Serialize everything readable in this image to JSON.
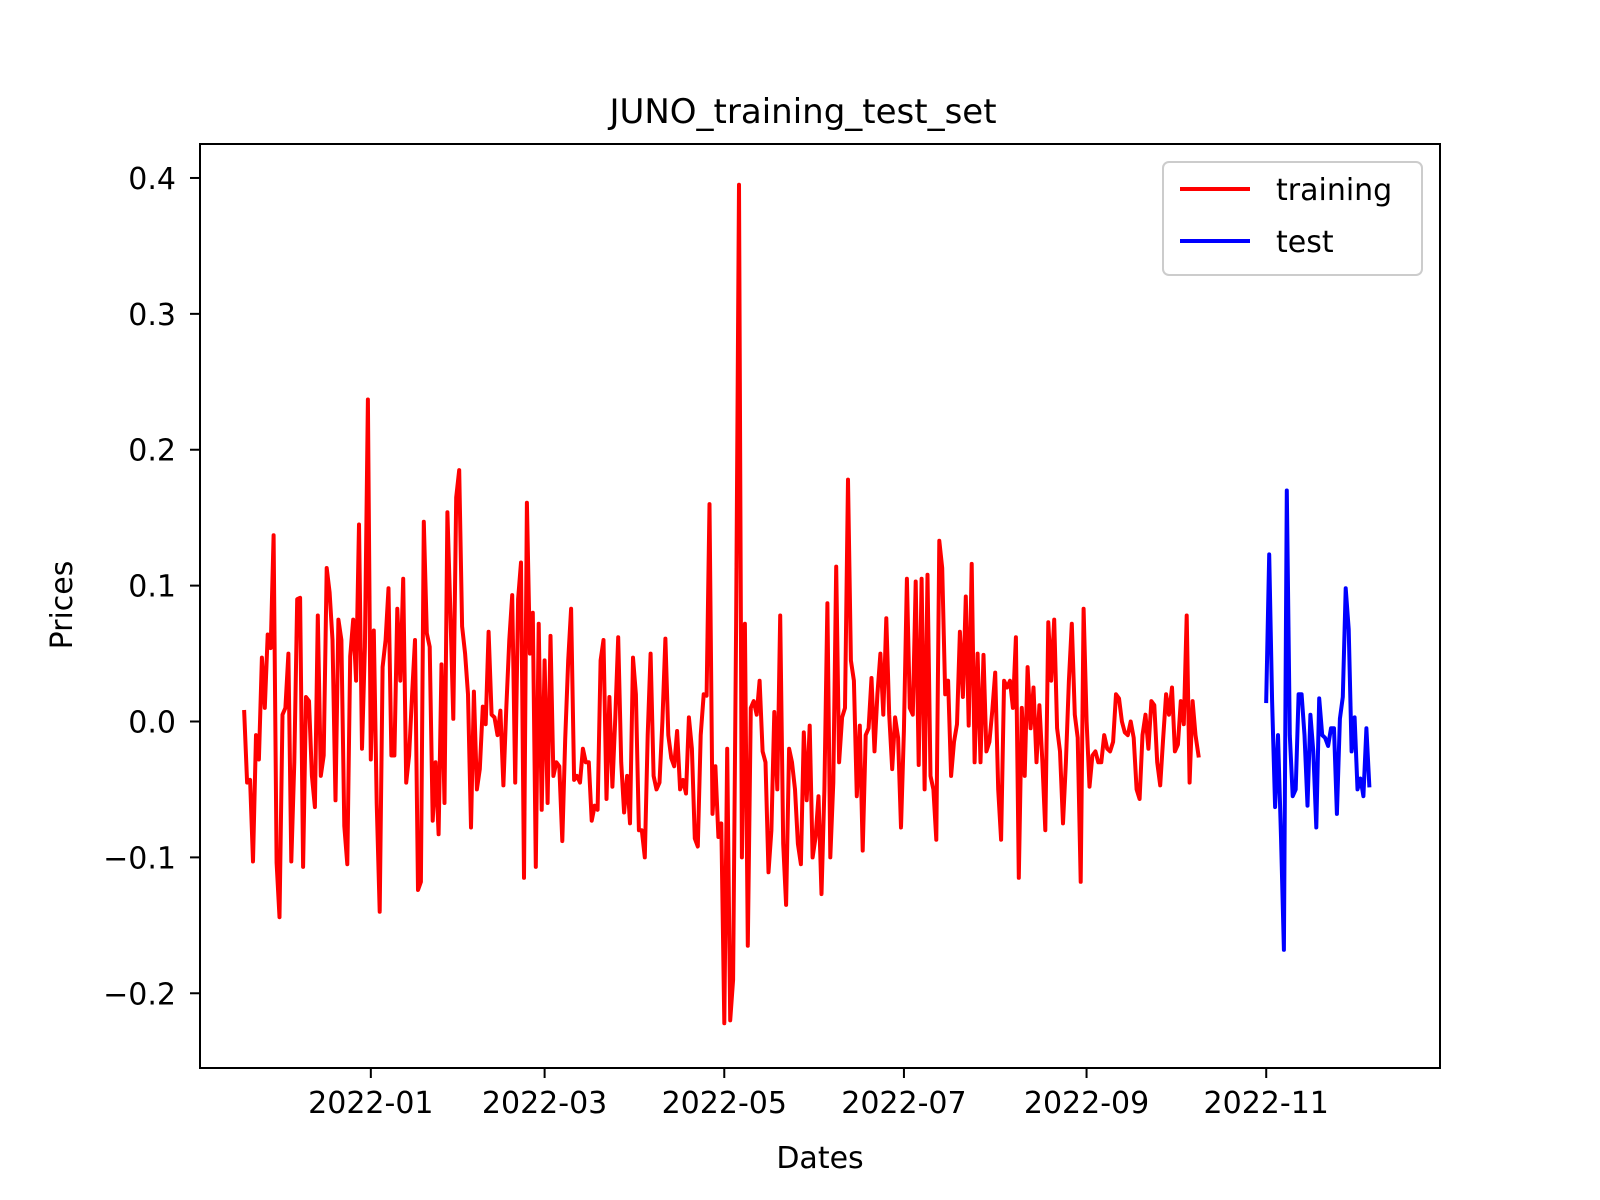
{
  "chart_data": {
    "type": "line",
    "title": "JUNO_training_test_set",
    "xlabel": "Dates",
    "ylabel": "Prices",
    "x_ticks": [
      "2022-01",
      "2022-03",
      "2022-05",
      "2022-07",
      "2022-09",
      "2022-11"
    ],
    "y_ticks": [
      "0.4",
      "0.3",
      "0.2",
      "0.1",
      "0.0",
      "−0.1",
      "−0.2"
    ],
    "xlim": [
      "2021-11-04",
      "2022-12-30"
    ],
    "ylim": [
      -0.255,
      0.425
    ],
    "grid": false,
    "legend_position": "top-right",
    "series": [
      {
        "name": "training",
        "color": "#ff0000",
        "x_start": "2021-11-19",
        "x_step_days": 1,
        "values": [
          0.007,
          -0.045,
          -0.043,
          -0.103,
          -0.01,
          -0.028,
          0.047,
          0.01,
          0.064,
          0.054,
          0.137,
          -0.104,
          -0.144,
          0.005,
          0.01,
          0.05,
          -0.103,
          -0.03,
          0.09,
          0.091,
          -0.107,
          0.018,
          0.015,
          -0.04,
          -0.063,
          0.078,
          -0.04,
          -0.025,
          0.113,
          0.095,
          0.06,
          -0.058,
          0.075,
          0.06,
          -0.077,
          -0.105,
          0.048,
          0.075,
          0.03,
          0.145,
          -0.02,
          0.055,
          0.237,
          -0.028,
          0.067,
          -0.06,
          -0.14,
          0.04,
          0.06,
          0.098,
          -0.025,
          -0.025,
          0.083,
          0.03,
          0.105,
          -0.045,
          -0.025,
          0.02,
          0.06,
          -0.124,
          -0.118,
          0.147,
          0.065,
          0.055,
          -0.073,
          -0.03,
          -0.083,
          0.042,
          -0.06,
          0.154,
          0.08,
          0.002,
          0.165,
          0.185,
          0.07,
          0.05,
          0.02,
          -0.078,
          0.022,
          -0.05,
          -0.035,
          0.011,
          -0.002,
          0.066,
          0.005,
          0.003,
          -0.01,
          0.008,
          -0.047,
          0.01,
          0.06,
          0.093,
          -0.045,
          0.09,
          0.117,
          -0.115,
          0.161,
          0.05,
          0.08,
          -0.107,
          0.072,
          -0.065,
          0.045,
          -0.06,
          0.063,
          -0.04,
          -0.03,
          -0.033,
          -0.088,
          -0.013,
          0.045,
          0.083,
          -0.043,
          -0.04,
          -0.045,
          -0.02,
          -0.03,
          -0.03,
          -0.073,
          -0.062,
          -0.065,
          0.045,
          0.06,
          -0.057,
          0.018,
          -0.048,
          0.003,
          0.062,
          -0.03,
          -0.067,
          -0.04,
          -0.075,
          0.047,
          0.02,
          -0.08,
          -0.08,
          -0.1,
          -0.01,
          0.05,
          -0.04,
          -0.05,
          -0.045,
          0.0,
          0.061,
          -0.01,
          -0.027,
          -0.033,
          -0.007,
          -0.05,
          -0.043,
          -0.053,
          0.003,
          -0.02,
          -0.086,
          -0.092,
          -0.01,
          0.02,
          0.019,
          0.16,
          -0.068,
          -0.033,
          -0.085,
          -0.075,
          -0.222,
          -0.02,
          -0.22,
          -0.19,
          0.07,
          0.395,
          -0.1,
          0.072,
          -0.165,
          0.01,
          0.015,
          0.005,
          0.03,
          -0.022,
          -0.03,
          -0.111,
          -0.08,
          0.007,
          -0.05,
          0.078,
          -0.09,
          -0.135,
          -0.02,
          -0.03,
          -0.05,
          -0.09,
          -0.105,
          -0.008,
          -0.058,
          -0.003,
          -0.1,
          -0.085,
          -0.055,
          -0.127,
          -0.05,
          0.087,
          -0.1,
          -0.045,
          0.114,
          -0.03,
          0.003,
          0.01,
          0.178,
          0.045,
          0.03,
          -0.055,
          -0.003,
          -0.095,
          -0.01,
          -0.005,
          0.032,
          -0.022,
          0.02,
          0.05,
          0.005,
          0.076,
          0.005,
          -0.035,
          0.003,
          -0.012,
          -0.078,
          -0.007,
          0.105,
          0.01,
          0.005,
          0.103,
          -0.032,
          0.105,
          -0.05,
          0.108,
          -0.04,
          -0.05,
          -0.087,
          0.133,
          0.113,
          0.02,
          0.03,
          -0.04,
          -0.015,
          -0.002,
          0.066,
          0.018,
          0.092,
          -0.003,
          0.116,
          -0.03,
          0.05,
          -0.03,
          0.049,
          -0.022,
          -0.015,
          0.008,
          0.036,
          -0.05,
          -0.087,
          0.03,
          0.025,
          0.03,
          0.01,
          0.062,
          -0.115,
          0.01,
          -0.04,
          0.04,
          -0.005,
          0.025,
          -0.03,
          0.012,
          -0.03,
          -0.08,
          0.073,
          0.03,
          0.075,
          -0.005,
          -0.022,
          -0.075,
          -0.03,
          0.03,
          0.072,
          0.005,
          -0.012,
          -0.118,
          0.083,
          0.0,
          -0.048,
          -0.025,
          -0.022,
          -0.03,
          -0.03,
          -0.01,
          -0.02,
          -0.022,
          -0.015,
          0.02,
          0.017,
          0.0,
          -0.008,
          -0.01,
          0.0,
          -0.012,
          -0.05,
          -0.057,
          -0.01,
          0.005,
          -0.02,
          0.015,
          0.012,
          -0.03,
          -0.047,
          -0.013,
          0.02,
          0.005,
          0.025,
          -0.022,
          -0.017,
          0.015,
          -0.002,
          0.078,
          -0.045,
          0.015,
          -0.01,
          -0.025
        ]
      },
      {
        "name": "test",
        "color": "#0000ff",
        "x_start": "2022-11-01",
        "x_step_days": 1,
        "values": [
          0.015,
          0.123,
          0.015,
          -0.063,
          -0.01,
          -0.085,
          -0.168,
          0.17,
          -0.01,
          -0.055,
          -0.05,
          0.02,
          0.02,
          -0.01,
          -0.062,
          0.005,
          -0.022,
          -0.078,
          0.017,
          -0.01,
          -0.012,
          -0.018,
          -0.005,
          -0.005,
          -0.068,
          0.002,
          0.018,
          0.098,
          0.068,
          -0.022,
          0.003,
          -0.05,
          -0.042,
          -0.055,
          -0.005,
          -0.047
        ]
      }
    ]
  }
}
